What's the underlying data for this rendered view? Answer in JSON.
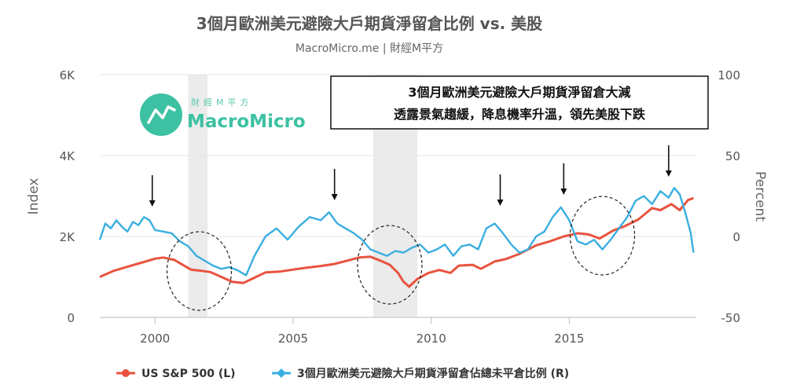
{
  "brand": {
    "logo_small": "財經M平方",
    "logo_big": "MacroMicro",
    "accent": "#3cc1a2"
  },
  "chart_data": {
    "type": "line",
    "title": "3個月歐洲美元避險大戶期貨淨留倉比例 vs. 美股",
    "subtitle": "MacroMicro.me | 財經M平方",
    "annotation_lines": [
      "3個月歐洲美元避險大戶期貨淨留倉大減",
      "透露景氣趨緩，降息機率升溫，領先美股下跌"
    ],
    "left_axis": {
      "title": "Index",
      "ticks": [
        "0",
        "2K",
        "4K",
        "6K"
      ],
      "range": [
        0,
        6000
      ]
    },
    "right_axis": {
      "title": "Percent",
      "ticks": [
        "-50",
        "0",
        "50",
        "100"
      ],
      "range": [
        -50,
        100
      ]
    },
    "x_axis": {
      "ticks": [
        "2000",
        "2005",
        "2010",
        "2015"
      ],
      "range": [
        1998.0,
        2019.6
      ]
    },
    "recession_bands": [
      [
        2001.2,
        2001.9
      ],
      [
        2007.9,
        2009.5
      ]
    ],
    "highlight_circles": [
      2001.6,
      2008.5,
      2016.2
    ],
    "down_arrows": [
      1999.9,
      2006.5,
      2012.5,
      2014.8,
      2018.6
    ],
    "series": [
      {
        "name": "US S&P 500 (L)",
        "axis": "left",
        "color": "#e8533f",
        "x": [
          1998.0,
          1998.5,
          1999.0,
          1999.5,
          2000.0,
          2000.3,
          2000.7,
          2001.0,
          2001.3,
          2001.7,
          2002.0,
          2002.4,
          2002.8,
          2003.2,
          2003.6,
          2004.0,
          2004.5,
          2005.0,
          2005.5,
          2006.0,
          2006.5,
          2007.0,
          2007.4,
          2007.8,
          2008.2,
          2008.5,
          2008.8,
          2009.0,
          2009.2,
          2009.5,
          2009.9,
          2010.3,
          2010.7,
          2011.0,
          2011.5,
          2011.8,
          2012.3,
          2012.7,
          2013.2,
          2013.8,
          2014.3,
          2014.8,
          2015.3,
          2015.7,
          2016.1,
          2016.6,
          2017.0,
          2017.5,
          2018.0,
          2018.3,
          2018.7,
          2019.0,
          2019.3,
          2019.5
        ],
        "values": [
          1000,
          1150,
          1250,
          1350,
          1450,
          1480,
          1420,
          1300,
          1180,
          1150,
          1120,
          1000,
          880,
          850,
          980,
          1110,
          1130,
          1180,
          1230,
          1270,
          1320,
          1410,
          1480,
          1500,
          1390,
          1300,
          1100,
          880,
          760,
          950,
          1100,
          1170,
          1100,
          1280,
          1300,
          1200,
          1380,
          1440,
          1570,
          1780,
          1880,
          2000,
          2080,
          2050,
          1950,
          2150,
          2250,
          2420,
          2700,
          2650,
          2800,
          2650,
          2900,
          2950
        ]
      },
      {
        "name": "3個月歐洲美元避險大戶期貨淨留倉佔總未平倉比例 (R)",
        "axis": "right",
        "color": "#3aaee0",
        "x": [
          1998.0,
          1998.2,
          1998.4,
          1998.6,
          1998.8,
          1999.0,
          1999.2,
          1999.4,
          1999.6,
          1999.8,
          2000.0,
          2000.3,
          2000.6,
          2000.9,
          2001.2,
          2001.5,
          2001.8,
          2002.1,
          2002.4,
          2002.7,
          2003.0,
          2003.3,
          2003.6,
          2004.0,
          2004.4,
          2004.8,
          2005.2,
          2005.6,
          2006.0,
          2006.3,
          2006.6,
          2006.9,
          2007.2,
          2007.5,
          2007.8,
          2008.1,
          2008.4,
          2008.7,
          2009.0,
          2009.3,
          2009.6,
          2009.9,
          2010.2,
          2010.5,
          2010.8,
          2011.1,
          2011.4,
          2011.7,
          2012.0,
          2012.3,
          2012.6,
          2012.9,
          2013.2,
          2013.5,
          2013.8,
          2014.1,
          2014.4,
          2014.7,
          2015.0,
          2015.3,
          2015.6,
          2015.9,
          2016.2,
          2016.5,
          2016.8,
          2017.1,
          2017.4,
          2017.7,
          2018.0,
          2018.3,
          2018.6,
          2018.8,
          2019.0,
          2019.2,
          2019.4,
          2019.5
        ],
        "values": [
          -2,
          8,
          5,
          10,
          6,
          3,
          9,
          7,
          12,
          10,
          4,
          3,
          2,
          -3,
          -6,
          -12,
          -15,
          -18,
          -20,
          -19,
          -21,
          -24,
          -12,
          0,
          5,
          -2,
          6,
          12,
          10,
          15,
          8,
          5,
          2,
          -2,
          -8,
          -10,
          -12,
          -9,
          -10,
          -7,
          -5,
          -10,
          -8,
          -5,
          -12,
          -6,
          -5,
          -8,
          5,
          8,
          2,
          -5,
          -10,
          -8,
          0,
          3,
          12,
          18,
          10,
          -3,
          -5,
          -2,
          -8,
          -2,
          5,
          12,
          22,
          25,
          20,
          28,
          24,
          30,
          26,
          15,
          2,
          -10
        ]
      }
    ]
  }
}
